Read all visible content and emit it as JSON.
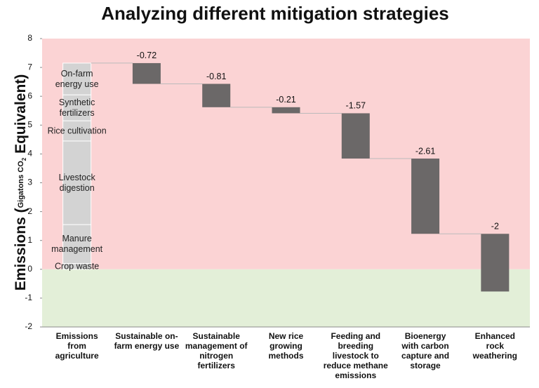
{
  "chart_data": {
    "type": "waterfall",
    "title": "Analyzing different mitigation strategies",
    "y_label_parts": [
      "Emissions (",
      "Gigatons CO",
      "2",
      " Equivalent)"
    ],
    "ylim": [
      -2,
      8
    ],
    "yticks": [
      -2,
      -1,
      0,
      1,
      2,
      3,
      4,
      5,
      6,
      7,
      8
    ],
    "positive_region_color": "#fbd3d4",
    "negative_region_color": "#e3efd8",
    "total": {
      "category": "Emissions\nfrom\nagriculture",
      "color": "#d3d3d3",
      "segments": [
        {
          "name": "Crop waste",
          "value": 0.2
        },
        {
          "name": "Manure\nmanagement",
          "value": 1.35
        },
        {
          "name": "Livestock\ndigestion",
          "value": 2.9
        },
        {
          "name": "Rice cultivation",
          "value": 0.7
        },
        {
          "name": "Synthetic\nfertilizers",
          "value": 0.9
        },
        {
          "name": "On-farm\nenergy use",
          "value": 1.1
        }
      ]
    },
    "steps": {
      "color": "#6b6868",
      "categories": [
        "Sustainable on-\nfarm energy use",
        "Sustainable\nmanagement of\nnitrogen\nfertilizers",
        "New rice\ngrowing\nmethods",
        "Feeding and\nbreeding\nlivestock to\nreduce methane\nemissions",
        "Bioenergy\nwith carbon\ncapture and\nstorage",
        "Enhanced\nrock\nweathering"
      ],
      "values": [
        -0.72,
        -0.81,
        -0.21,
        -1.57,
        -2.61,
        -2
      ]
    }
  }
}
